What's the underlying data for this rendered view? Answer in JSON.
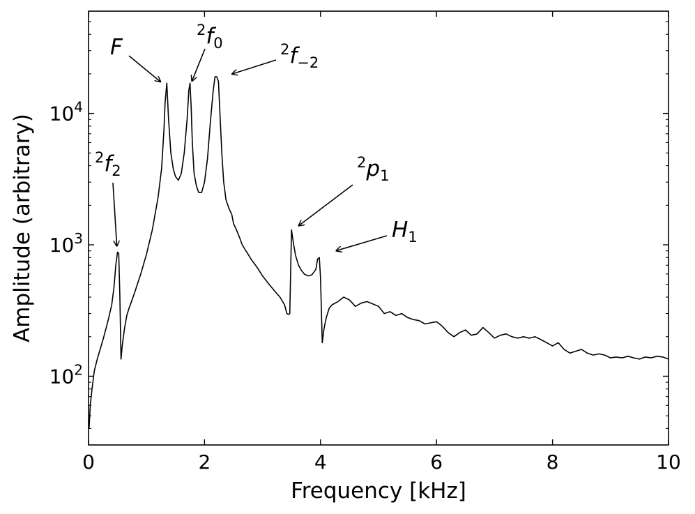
{
  "chart_data": {
    "type": "line",
    "xlabel": "Frequency [kHz]",
    "ylabel": "Amplitude (arbitrary)",
    "xlim": [
      0,
      10
    ],
    "ylim": [
      30,
      60000
    ],
    "yscale": "log",
    "grid": false,
    "x_ticks": [
      0,
      2,
      4,
      6,
      8,
      10
    ],
    "x_tick_labels": [
      "0",
      "2",
      "4",
      "6",
      "8",
      "10"
    ],
    "y_ticks": [
      100,
      1000,
      10000
    ],
    "y_tick_labels": [
      {
        "base": "10",
        "exp": "2"
      },
      {
        "base": "10",
        "exp": "3"
      },
      {
        "base": "10",
        "exp": "4"
      }
    ],
    "line_color": "#000000",
    "series": [
      {
        "x": [
          0.01,
          0.03,
          0.06,
          0.1,
          0.15,
          0.2,
          0.25,
          0.3,
          0.35,
          0.4,
          0.44,
          0.47,
          0.5,
          0.52,
          0.54,
          0.56,
          0.58,
          0.62,
          0.66,
          0.7,
          0.75,
          0.8,
          0.9,
          1.0,
          1.1,
          1.2,
          1.26,
          1.3,
          1.32,
          1.35,
          1.38,
          1.42,
          1.46,
          1.5,
          1.55,
          1.6,
          1.65,
          1.7,
          1.73,
          1.75,
          1.77,
          1.79,
          1.82,
          1.86,
          1.9,
          1.95,
          2.0,
          2.05,
          2.1,
          2.15,
          2.18,
          2.21,
          2.24,
          2.27,
          2.3,
          2.33,
          2.37,
          2.42,
          2.47,
          2.5,
          2.55,
          2.6,
          2.65,
          2.7,
          2.75,
          2.8,
          2.9,
          3.0,
          3.1,
          3.2,
          3.3,
          3.38,
          3.42,
          3.45,
          3.47,
          3.5,
          3.53,
          3.57,
          3.62,
          3.67,
          3.72,
          3.78,
          3.85,
          3.92,
          3.95,
          3.98,
          4.0,
          4.03,
          4.06,
          4.1,
          4.15,
          4.2,
          4.3,
          4.4,
          4.5,
          4.55,
          4.6,
          4.7,
          4.8,
          4.9,
          5.0,
          5.1,
          5.2,
          5.3,
          5.4,
          5.5,
          5.6,
          5.7,
          5.8,
          5.9,
          6.0,
          6.1,
          6.2,
          6.3,
          6.4,
          6.5,
          6.6,
          6.7,
          6.8,
          6.9,
          7.0,
          7.1,
          7.2,
          7.3,
          7.4,
          7.5,
          7.6,
          7.7,
          7.8,
          7.9,
          8.0,
          8.1,
          8.2,
          8.3,
          8.4,
          8.5,
          8.6,
          8.7,
          8.8,
          8.9,
          9.0,
          9.1,
          9.2,
          9.3,
          9.4,
          9.5,
          9.6,
          9.7,
          9.8,
          9.9,
          10.0
        ],
        "y": [
          40,
          60,
          80,
          110,
          135,
          160,
          190,
          230,
          280,
          350,
          480,
          700,
          880,
          860,
          420,
          135,
          170,
          230,
          290,
          330,
          380,
          440,
          600,
          850,
          1300,
          2300,
          3800,
          7500,
          12000,
          17000,
          9000,
          5000,
          3800,
          3300,
          3100,
          3500,
          5000,
          9000,
          15000,
          17000,
          11000,
          6000,
          3500,
          2800,
          2500,
          2500,
          3000,
          4500,
          8500,
          15000,
          19000,
          19000,
          17500,
          9000,
          4800,
          3000,
          2200,
          1900,
          1700,
          1450,
          1300,
          1150,
          1000,
          920,
          850,
          780,
          680,
          580,
          510,
          450,
          400,
          350,
          300,
          295,
          300,
          1300,
          1050,
          830,
          700,
          640,
          600,
          580,
          590,
          650,
          780,
          800,
          560,
          180,
          230,
          280,
          330,
          350,
          370,
          400,
          380,
          360,
          340,
          360,
          370,
          355,
          340,
          300,
          310,
          290,
          300,
          280,
          270,
          265,
          250,
          255,
          260,
          240,
          215,
          200,
          215,
          225,
          205,
          210,
          235,
          215,
          195,
          205,
          210,
          200,
          195,
          200,
          195,
          200,
          190,
          180,
          170,
          180,
          160,
          150,
          155,
          160,
          150,
          145,
          148,
          145,
          138,
          140,
          138,
          142,
          138,
          135,
          140,
          138,
          142,
          140,
          135
        ]
      }
    ],
    "annotations": [
      {
        "id": "F",
        "base": "F",
        "sup": "",
        "sub": "",
        "x": 1.3,
        "y": 17000
      },
      {
        "id": "2f0",
        "base": "f",
        "sup": "2",
        "sub": "0",
        "x": 1.82,
        "y": 17000
      },
      {
        "id": "2f-2",
        "base": "f",
        "sup": "2",
        "sub": "−2",
        "x": 2.33,
        "y": 19000
      },
      {
        "id": "2f2",
        "base": "f",
        "sup": "2",
        "sub": "2",
        "x": 0.5,
        "y": 900
      },
      {
        "id": "2p1",
        "base": "p",
        "sup": "2",
        "sub": "1",
        "x": 3.6,
        "y": 1300
      },
      {
        "id": "H1",
        "base": "H",
        "sup": "",
        "sub": "1",
        "x": 4.15,
        "y": 880
      }
    ]
  }
}
